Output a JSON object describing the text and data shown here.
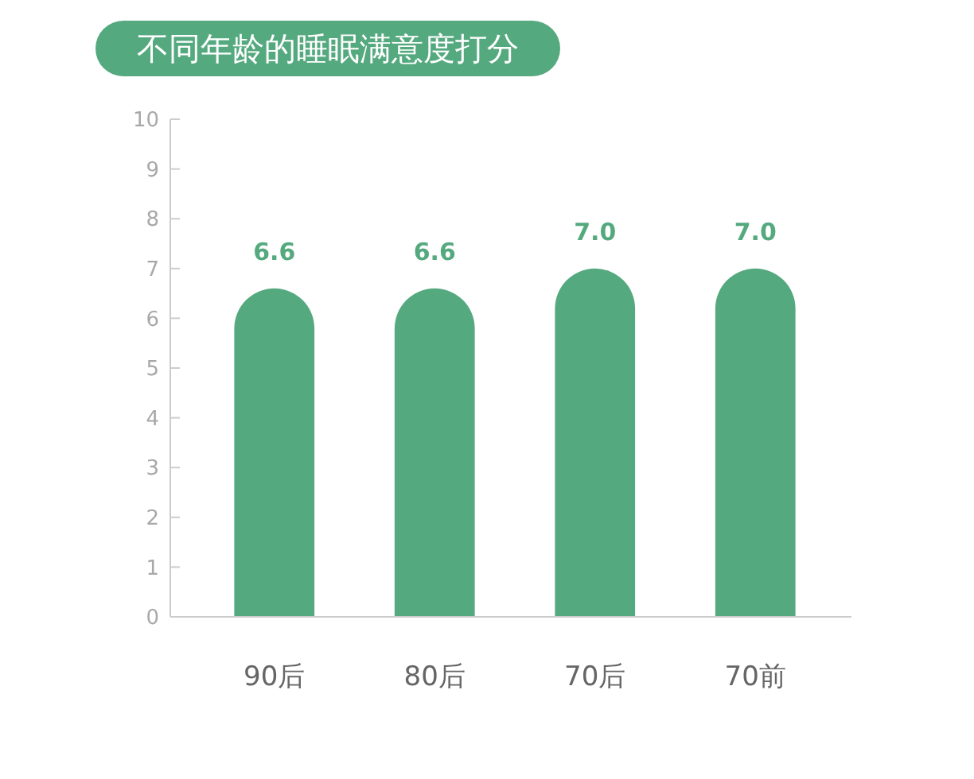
{
  "chart_data": {
    "type": "bar",
    "title": "不同年龄的睡眠满意度打分",
    "categories": [
      "90后",
      "80后",
      "70后",
      "70前"
    ],
    "values": [
      6.6,
      6.6,
      7.0,
      7.0
    ],
    "color": "#55a97f",
    "value_labels": [
      "6.6",
      "6.6",
      "7.0",
      "7.0"
    ],
    "ylim": [
      0,
      10
    ],
    "yticks": [
      0,
      1,
      2,
      3,
      4,
      5,
      6,
      7,
      8,
      9,
      10
    ]
  }
}
